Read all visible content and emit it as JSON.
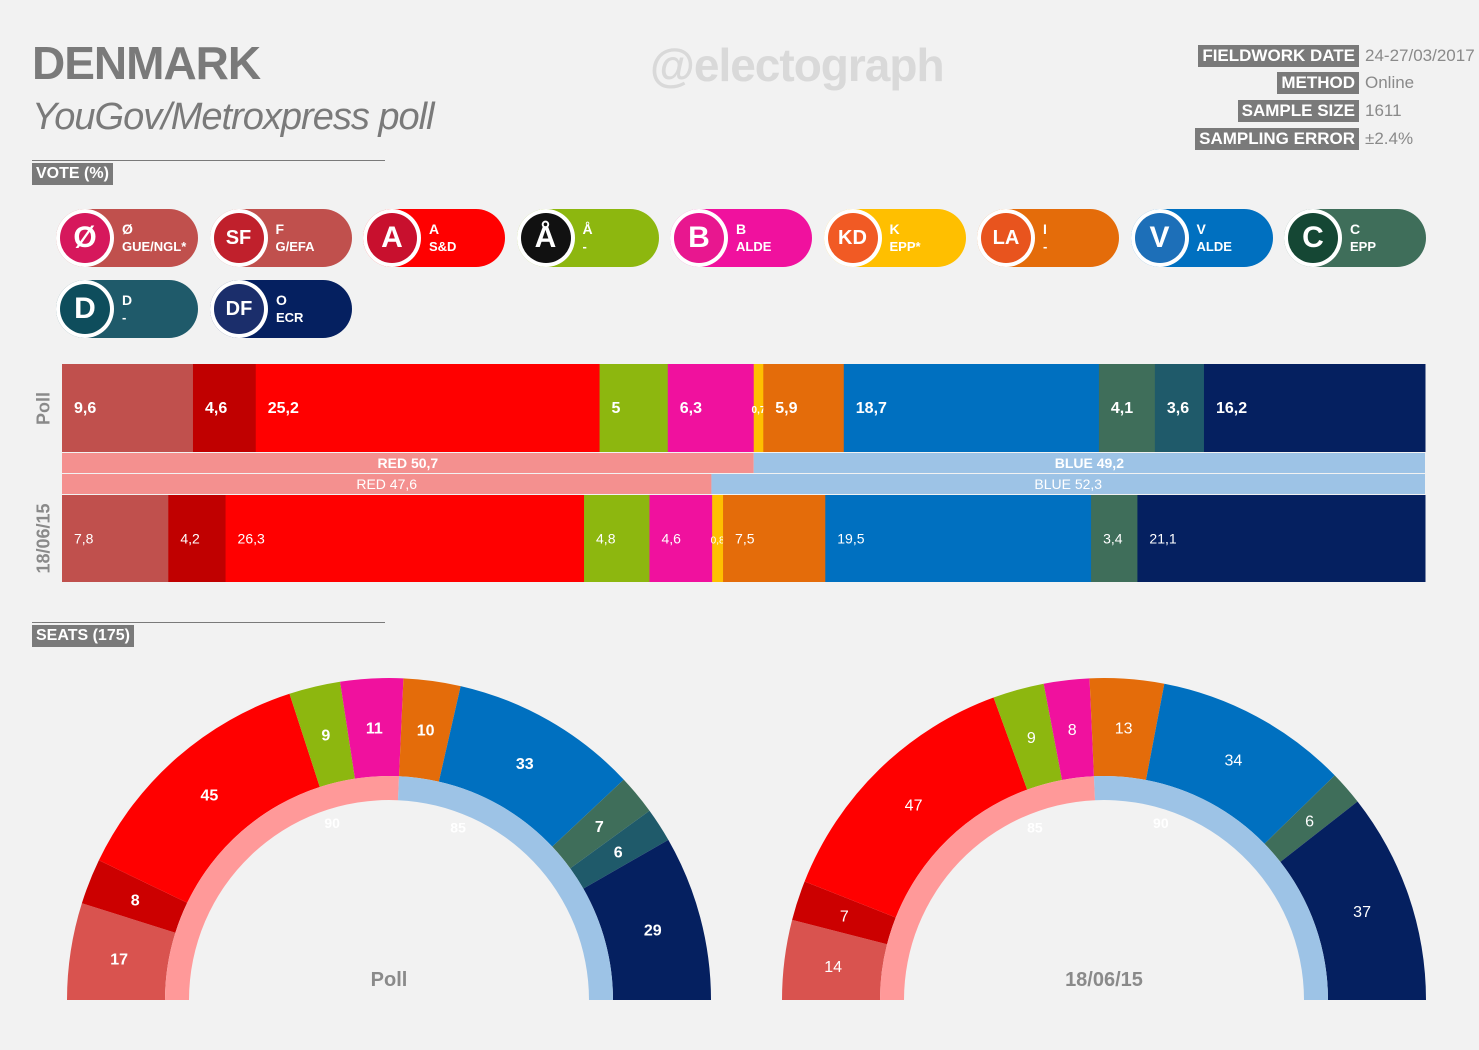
{
  "header": {
    "title": "DENMARK",
    "subtitle": "YouGov/Metroxpress poll",
    "watermark": "@electograph",
    "meta": [
      {
        "label": "FIELDWORK DATE",
        "value": "24-27/03/2017"
      },
      {
        "label": "METHOD",
        "value": "Online"
      },
      {
        "label": "SAMPLE SIZE",
        "value": "1611"
      },
      {
        "label": "SAMPLING ERROR",
        "value": "±2.4%"
      }
    ]
  },
  "sections": {
    "vote_label": "VOTE (%)",
    "seats_label": "SEATS (175)"
  },
  "parties": [
    {
      "letter": "Ø",
      "group": "GUE/NGL*",
      "color": "#c0504d",
      "logo": "Ø",
      "logo_color": "#d6185c"
    },
    {
      "letter": "F",
      "group": "G/EFA",
      "color": "#c0504d",
      "logo": "SF",
      "logo_color": "#c0202c"
    },
    {
      "letter": "A",
      "group": "S&D",
      "color": "#ff0000",
      "logo": "A",
      "logo_color": "#c8102e"
    },
    {
      "letter": "Å",
      "group": "-",
      "color": "#8db70f",
      "logo": "Å",
      "logo_color": "#111111"
    },
    {
      "letter": "B",
      "group": "ALDE",
      "color": "#f0119e",
      "logo": "B",
      "logo_color": "#e8178f"
    },
    {
      "letter": "K",
      "group": "EPP*",
      "color": "#ffbf00",
      "logo": "KD",
      "logo_color": "#f15a24"
    },
    {
      "letter": "I",
      "group": "-",
      "color": "#e46c0a",
      "logo": "LA",
      "logo_color": "#e8541e"
    },
    {
      "letter": "V",
      "group": "ALDE",
      "color": "#0070c0",
      "logo": "V",
      "logo_color": "#1d6fb8"
    },
    {
      "letter": "C",
      "group": "EPP",
      "color": "#3f6e5a",
      "logo": "C",
      "logo_color": "#154734"
    },
    {
      "letter": "D",
      "group": "-",
      "color": "#1f5a6a",
      "logo": "D",
      "logo_color": "#0e4d5c"
    },
    {
      "letter": "O",
      "group": "ECR",
      "color": "#052060",
      "logo": "DF",
      "logo_color": "#1b2e6b"
    }
  ],
  "chart_data": [
    {
      "type": "bar",
      "orientation": "horizontal-stacked",
      "rows": [
        "Poll",
        "18/06/15"
      ],
      "series": [
        {
          "name": "Poll",
          "values": [
            9.6,
            4.6,
            25.2,
            5,
            6.3,
            0.7,
            5.9,
            18.7,
            4.1,
            3.6,
            16.2
          ],
          "labels": [
            "9,6",
            "4,6",
            "25,2",
            "5",
            "6,3",
            "0,7",
            "5,9",
            "18,7",
            "4,1",
            "3,6",
            "16,2"
          ],
          "colors": [
            "#c0504d",
            "#c00000",
            "#ff0000",
            "#8db70f",
            "#f0119e",
            "#ffbf00",
            "#e46c0a",
            "#0070c0",
            "#3f6e5a",
            "#1f5a6a",
            "#052060"
          ]
        },
        {
          "name": "18/06/15",
          "values": [
            7.8,
            4.2,
            26.3,
            4.8,
            4.6,
            0.8,
            7.5,
            19.5,
            3.4,
            21.1
          ],
          "labels": [
            "7,8",
            "4,2",
            "26,3",
            "4,8",
            "4,6",
            "0,8",
            "7,5",
            "19,5",
            "3,4",
            "21,1"
          ],
          "colors": [
            "#c0504d",
            "#c00000",
            "#ff0000",
            "#8db70f",
            "#f0119e",
            "#ffbf00",
            "#e46c0a",
            "#0070c0",
            "#3f6e5a",
            "#052060"
          ]
        }
      ],
      "blocs": [
        {
          "row": "Poll",
          "red": 50.7,
          "blue": 49.2,
          "red_label": "RED 50,7",
          "blue_label": "BLUE 49,2"
        },
        {
          "row": "18/06/15",
          "red": 47.6,
          "blue": 52.3,
          "red_label": "RED 47,6",
          "blue_label": "BLUE 52,3"
        }
      ]
    },
    {
      "type": "pie",
      "variant": "parliament-semicircle",
      "title": "Poll",
      "total": 175,
      "seats": [
        17,
        8,
        45,
        9,
        11,
        10,
        33,
        7,
        6,
        29
      ],
      "colors": [
        "#d9534f",
        "#cc0000",
        "#ff0000",
        "#8db70f",
        "#f0119e",
        "#e46c0a",
        "#0070c0",
        "#3f6e5a",
        "#1f5a6a",
        "#052060"
      ],
      "blocs": [
        {
          "name": "red",
          "value": 90,
          "color": "#ff9999"
        },
        {
          "name": "blue",
          "value": 85,
          "color": "#9dc3e6"
        }
      ]
    },
    {
      "type": "pie",
      "variant": "parliament-semicircle",
      "title": "18/06/15",
      "total": 175,
      "seats": [
        14,
        7,
        47,
        9,
        8,
        13,
        34,
        6,
        37
      ],
      "colors": [
        "#d9534f",
        "#cc0000",
        "#ff0000",
        "#8db70f",
        "#f0119e",
        "#e46c0a",
        "#0070c0",
        "#3f6e5a",
        "#052060"
      ],
      "blocs": [
        {
          "name": "red",
          "value": 85,
          "color": "#ff9999"
        },
        {
          "name": "blue",
          "value": 90,
          "color": "#9dc3e6"
        }
      ]
    }
  ]
}
